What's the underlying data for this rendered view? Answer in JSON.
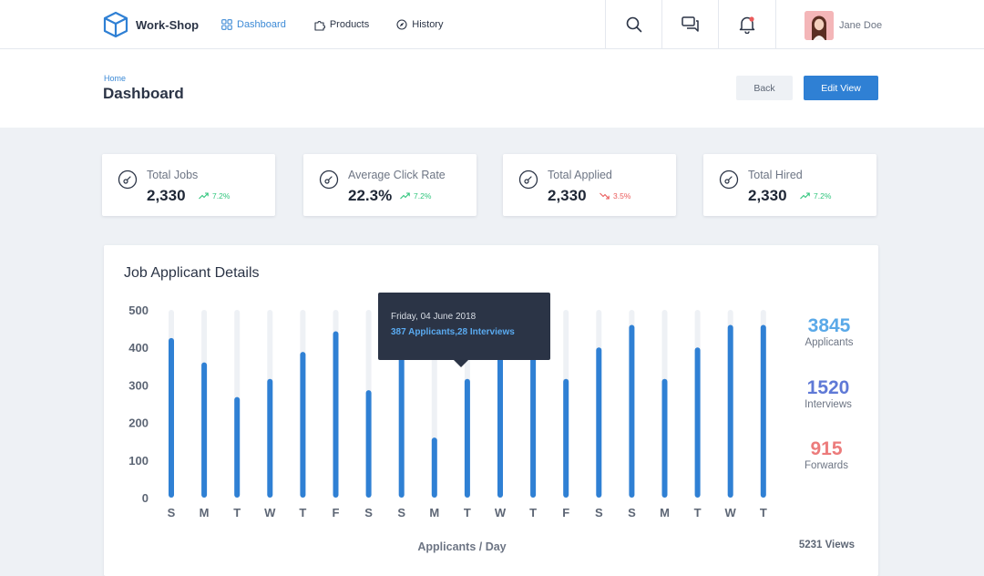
{
  "brand": {
    "name": "Work-Shop",
    "accent": "#2f80d4"
  },
  "nav": [
    {
      "label": "Dashboard",
      "icon": "grid-icon",
      "active": true
    },
    {
      "label": "Products",
      "icon": "puzzle-icon",
      "active": false
    },
    {
      "label": "History",
      "icon": "compass-icon",
      "active": false
    }
  ],
  "top_icons": [
    "search-icon",
    "chat-icon",
    "bell-icon"
  ],
  "user": {
    "name": "Jane Doe"
  },
  "header": {
    "breadcrumb": "Home",
    "title": "Dashboard",
    "back_label": "Back",
    "edit_label": "Edit View"
  },
  "stats": [
    {
      "label": "Total Jobs",
      "value": "2,330",
      "trend": "7.2%",
      "direction": "up"
    },
    {
      "label": "Average Click Rate",
      "value": "22.3%",
      "trend": "7.2%",
      "direction": "up"
    },
    {
      "label": "Total Applied",
      "value": "2,330",
      "trend": "3.5%",
      "direction": "down"
    },
    {
      "label": "Total Hired",
      "value": "2,330",
      "trend": "7.2%",
      "direction": "up"
    }
  ],
  "panel": {
    "title": "Job Applicant Details",
    "views": "5231 Views"
  },
  "tooltip": {
    "date": "Friday, 04 June 2018",
    "text": "387 Applicants,28 Interviews"
  },
  "summary": [
    {
      "value": "3845",
      "label": "Applicants",
      "color": "#5aa9e8"
    },
    {
      "value": "1520",
      "label": "Interviews",
      "color": "#5f79d6"
    },
    {
      "value": "915",
      "label": "Forwards",
      "color": "#ec7b7b"
    }
  ],
  "chart_data": {
    "type": "bar",
    "categories": [
      "S",
      "M",
      "T",
      "W",
      "T",
      "F",
      "S",
      "S",
      "M",
      "T",
      "W",
      "T",
      "F",
      "S",
      "S",
      "M",
      "T",
      "W",
      "T"
    ],
    "values": [
      425,
      360,
      268,
      316,
      388,
      443,
      286,
      380,
      160,
      316,
      390,
      375,
      316,
      400,
      460,
      316,
      400,
      460,
      460
    ],
    "xlabel": "Applicants / Day",
    "ylabel": "",
    "yticks": [
      0,
      100,
      200,
      300,
      400,
      500
    ],
    "ylim": [
      0,
      500
    ],
    "bar_color": "#2f80d4",
    "track_color": "#eef1f5",
    "grid": false
  }
}
